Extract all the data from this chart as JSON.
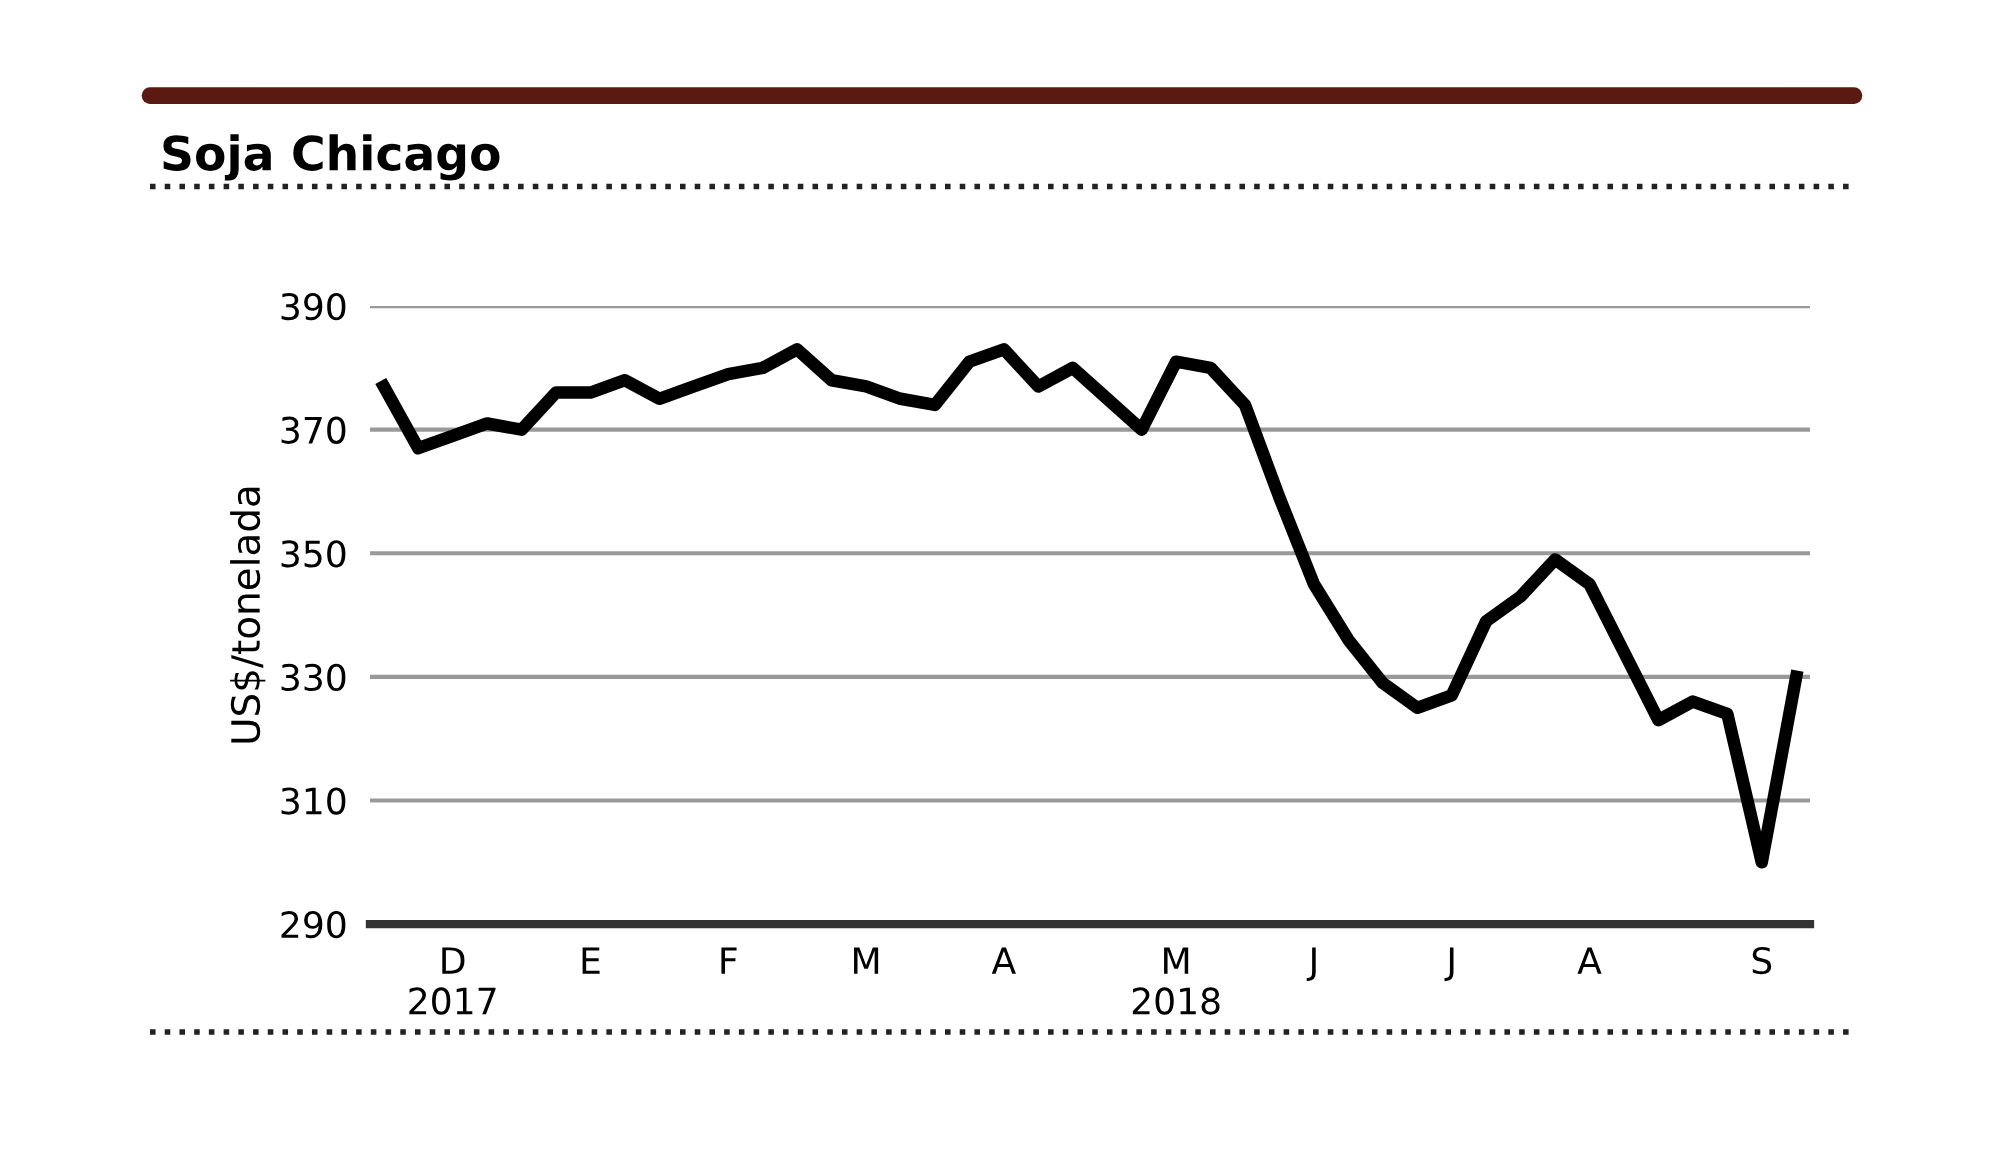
{
  "chart_data": {
    "type": "line",
    "title": "Soja Chicago",
    "ylabel": "US$/tonelada",
    "categories": [
      null,
      null,
      "D\n2017",
      null,
      null,
      null,
      "E",
      null,
      null,
      null,
      "F",
      null,
      null,
      null,
      "M",
      null,
      null,
      null,
      "A",
      null,
      null,
      null,
      null,
      "M\n2018",
      null,
      null,
      null,
      "J",
      null,
      null,
      null,
      "J",
      null,
      null,
      null,
      "A",
      null,
      null,
      null,
      null,
      "S",
      null
    ],
    "series": [
      {
        "color": "#000000",
        "values": [
          377,
          367,
          369,
          371,
          370,
          376,
          376,
          378,
          375,
          377,
          379,
          380,
          383,
          378,
          377,
          375,
          374,
          381,
          383,
          377,
          380,
          375,
          370,
          381,
          380,
          374,
          359,
          345,
          336,
          329,
          325,
          327,
          339,
          343,
          349,
          345,
          334,
          323,
          326,
          324,
          300,
          330
        ]
      }
    ],
    "ylim": [
      290,
      390
    ],
    "yticks": [
      290,
      310,
      330,
      350,
      370,
      390
    ],
    "grid": "y",
    "marker": "none",
    "line_style": "solid"
  }
}
